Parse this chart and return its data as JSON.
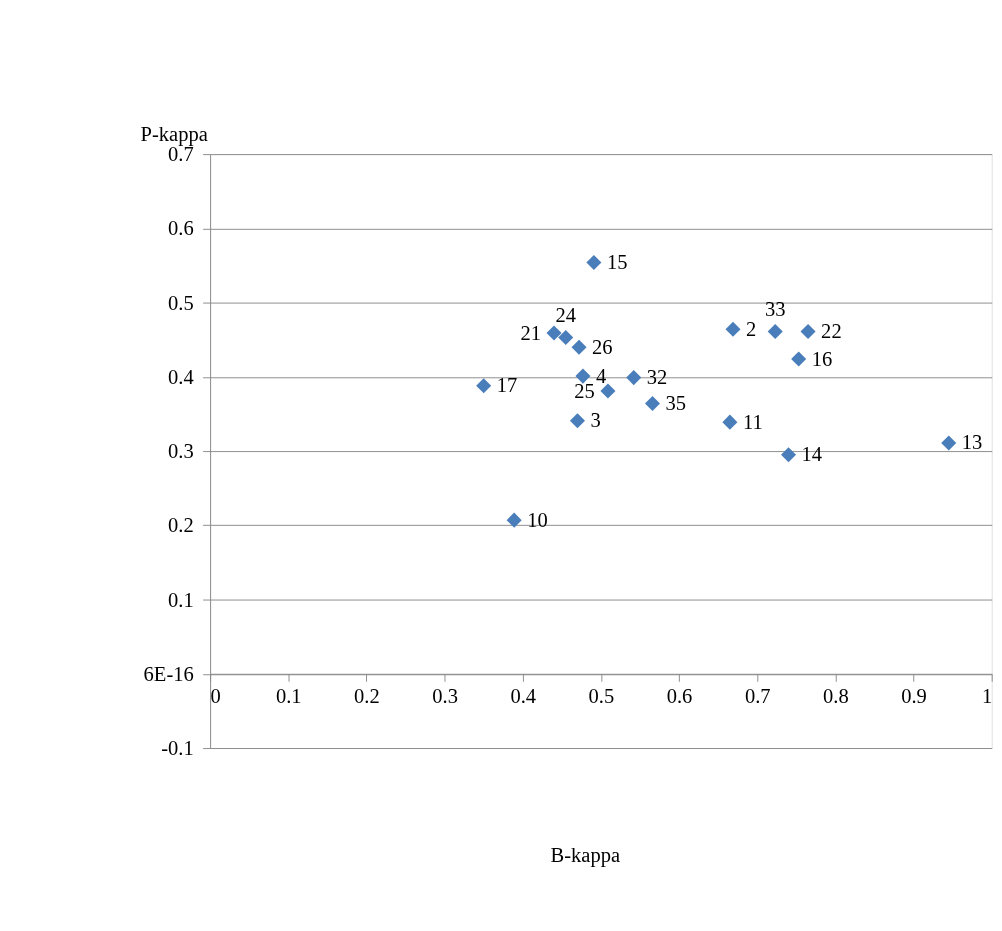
{
  "chart_data": {
    "type": "scatter",
    "xlabel": "B-kappa",
    "ylabel": "P-kappa",
    "x": [
      0.491,
      0.44,
      0.455,
      0.472,
      0.477,
      0.35,
      0.542,
      0.509,
      0.566,
      0.47,
      0.669,
      0.723,
      0.765,
      0.753,
      0.665,
      0.74,
      0.945,
      0.389
    ],
    "series": [
      {
        "color": "#4a7ebb",
        "values": [
          0.554,
          0.459,
          0.453,
          0.44,
          0.401,
          0.388,
          0.399,
          0.381,
          0.364,
          0.341,
          0.464,
          0.461,
          0.461,
          0.424,
          0.339,
          0.295,
          0.311,
          0.207
        ]
      }
    ],
    "annotations": [
      {
        "text": "15",
        "x": 0.491,
        "y": 0.554
      },
      {
        "text": "21",
        "x": 0.44,
        "y": 0.459
      },
      {
        "text": "24",
        "x": 0.455,
        "y": 0.453
      },
      {
        "text": "26",
        "x": 0.472,
        "y": 0.44
      },
      {
        "text": "4",
        "x": 0.477,
        "y": 0.401
      },
      {
        "text": "17",
        "x": 0.35,
        "y": 0.388
      },
      {
        "text": "32",
        "x": 0.542,
        "y": 0.399
      },
      {
        "text": "25",
        "x": 0.509,
        "y": 0.381
      },
      {
        "text": "35",
        "x": 0.566,
        "y": 0.364
      },
      {
        "text": "3",
        "x": 0.47,
        "y": 0.341
      },
      {
        "text": "2",
        "x": 0.669,
        "y": 0.464
      },
      {
        "text": "33",
        "x": 0.723,
        "y": 0.461
      },
      {
        "text": "22",
        "x": 0.765,
        "y": 0.461
      },
      {
        "text": "16",
        "x": 0.753,
        "y": 0.424
      },
      {
        "text": "11",
        "x": 0.665,
        "y": 0.339
      },
      {
        "text": "14",
        "x": 0.74,
        "y": 0.295
      },
      {
        "text": "13",
        "x": 0.945,
        "y": 0.311
      },
      {
        "text": "10",
        "x": 0.389,
        "y": 0.207
      }
    ],
    "xlim": [
      0,
      1
    ],
    "xticks": [
      0,
      0.1,
      0.2,
      0.3,
      0.4,
      0.5,
      0.6,
      0.7,
      0.8,
      0.9,
      1
    ],
    "ylim": [
      -0.1,
      0.7
    ],
    "yticks": [
      -0.1,
      {
        "value": 0,
        "label": "6E-16"
      },
      0.1,
      0.2,
      0.3,
      0.4,
      0.5,
      0.6,
      0.7
    ],
    "grid": "y",
    "marker": "diamond"
  }
}
